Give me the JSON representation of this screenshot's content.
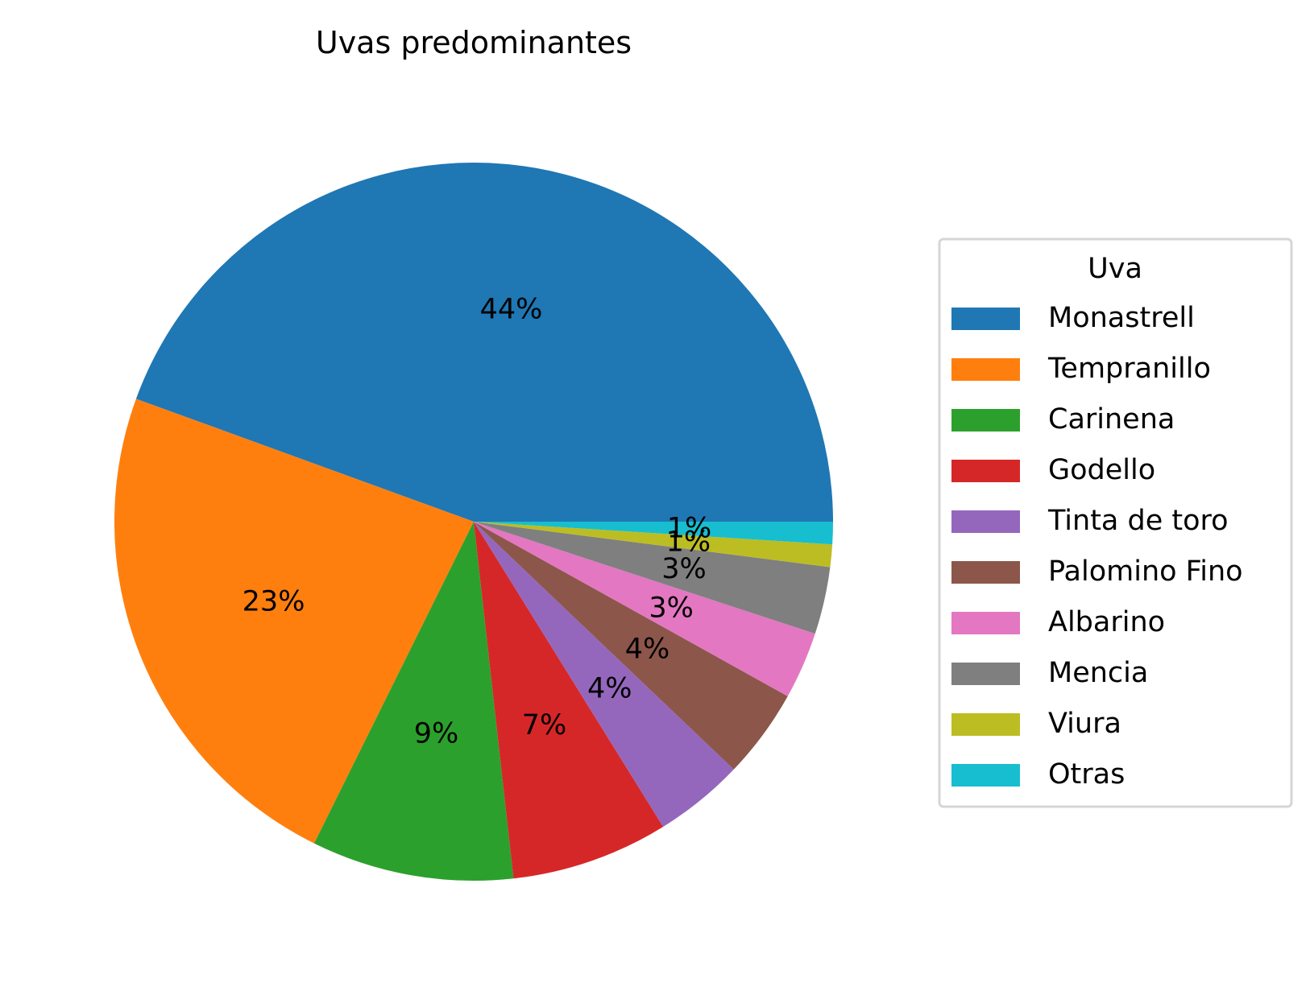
{
  "chart_data": {
    "type": "pie",
    "title": "Uvas predominantes",
    "legend": {
      "title": "Uva",
      "placement": "right"
    },
    "categories": [
      "Monastrell",
      "Tempranillo",
      "Carinena",
      "Godello",
      "Tinta de toro",
      "Palomino Fino",
      "Albarino",
      "Mencia",
      "Viura",
      "Otras"
    ],
    "values": [
      44,
      23,
      9,
      7,
      4,
      4,
      3,
      3,
      1,
      1
    ],
    "labels": [
      "44%",
      "23%",
      "9%",
      "7%",
      "4%",
      "4%",
      "3%",
      "3%",
      "1%",
      "1%"
    ],
    "colors": [
      "#1f77b4",
      "#ff7f0e",
      "#2ca02c",
      "#d62728",
      "#9467bd",
      "#8c564b",
      "#e377c2",
      "#7f7f7f",
      "#bcbd22",
      "#17becf"
    ],
    "start_angle": 0,
    "direction": "counterclockwise"
  }
}
